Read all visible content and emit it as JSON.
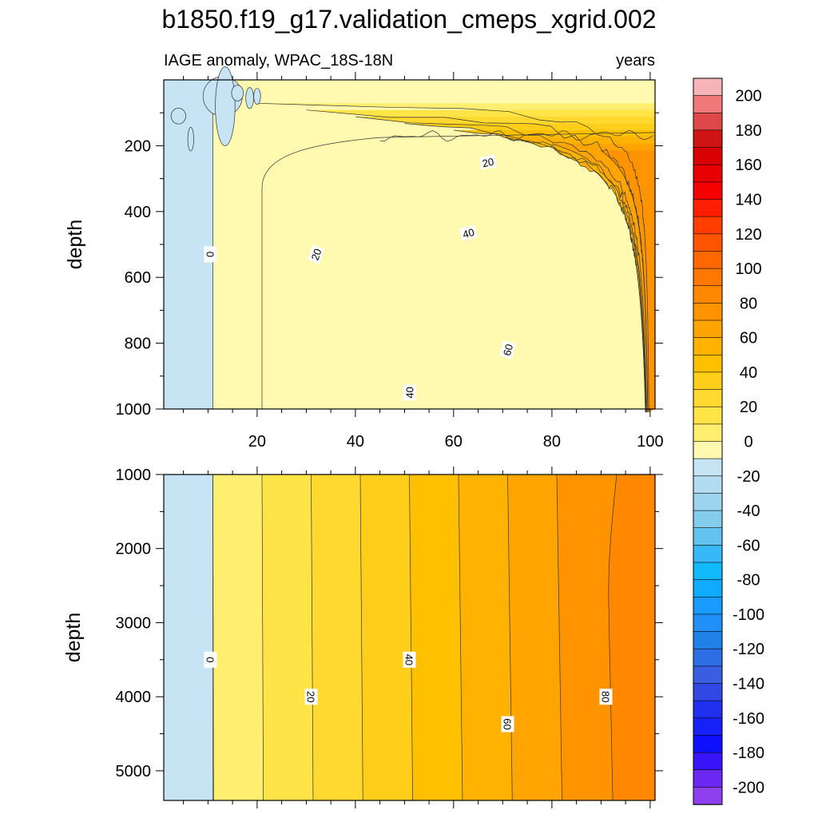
{
  "chart_data": {
    "type": "contour",
    "title": "b1850.f19_g17.validation_cmeps_xgrid.002",
    "left_subtitle": "IAGE anomaly, WPAC_18S-18N",
    "right_subtitle": "years",
    "units": "years",
    "x": {
      "range": [
        1,
        101
      ],
      "ticks": [
        20,
        40,
        60,
        80,
        100
      ],
      "tick_labels": [
        "20",
        "40",
        "60",
        "80",
        "100"
      ]
    },
    "panels": [
      {
        "name": "upper",
        "ylabel": "depth",
        "yrange": [
          0,
          1000
        ],
        "yticks": [
          200,
          400,
          600,
          800,
          1000
        ],
        "ytick_labels": [
          "200",
          "400",
          "600",
          "800",
          "1000"
        ],
        "contour_labels": [
          {
            "text": "0",
            "x": 10.5,
            "depth": 530,
            "rot": 90
          },
          {
            "text": "20",
            "x": 32,
            "depth": 530,
            "rot": -70
          },
          {
            "text": "40",
            "x": 51,
            "depth": 950,
            "rot": -90
          },
          {
            "text": "60",
            "x": 71,
            "depth": 820,
            "rot": -75
          },
          {
            "text": "20",
            "x": 67,
            "depth": 250,
            "rot": -12
          },
          {
            "text": "40",
            "x": 63,
            "depth": 465,
            "rot": -15
          }
        ]
      },
      {
        "name": "lower",
        "ylabel": "depth",
        "yrange": [
          1000,
          5400
        ],
        "yticks": [
          1000,
          2000,
          3000,
          4000,
          5000
        ],
        "ytick_labels": [
          "1000",
          "2000",
          "3000",
          "4000",
          "5000"
        ],
        "contour_labels": [
          {
            "text": "0",
            "x": 10.5,
            "depth": 3500,
            "rot": 90
          },
          {
            "text": "20",
            "x": 31,
            "depth": 4000,
            "rot": 90
          },
          {
            "text": "40",
            "x": 51,
            "depth": 3500,
            "rot": 90
          },
          {
            "text": "60",
            "x": 71,
            "depth": 4370,
            "rot": 90
          },
          {
            "text": "80",
            "x": 91,
            "depth": 4000,
            "rot": 90
          }
        ]
      }
    ],
    "colorbar": {
      "labels": [
        "200",
        "180",
        "160",
        "140",
        "120",
        "100",
        "80",
        "60",
        "40",
        "20",
        "0",
        "-20",
        "-40",
        "-60",
        "-80",
        "-100",
        "-120",
        "-140",
        "-160",
        "-180",
        "-200"
      ],
      "colors": [
        "#f7b4b8",
        "#ef7878",
        "#de4848",
        "#cf1414",
        "#d80000",
        "#e80000",
        "#f70000",
        "#ff1e00",
        "#ff3e00",
        "#ff5400",
        "#ff6800",
        "#ff7800",
        "#ff8800",
        "#ff9400",
        "#ffa400",
        "#ffb200",
        "#ffc000",
        "#ffce1a",
        "#ffd830",
        "#ffe448",
        "#ffee70",
        "#fffab0",
        "#c6e4f4",
        "#b4dcf0",
        "#9cd4ee",
        "#84ccec",
        "#64c2f0",
        "#38b8f8",
        "#12b8fc",
        "#10aaff",
        "#189cff",
        "#2090f6",
        "#2080e8",
        "#2e6ee4",
        "#3a5ee0",
        "#3248e4",
        "#2030ee",
        "#1820f8",
        "#0e10ff",
        "#3a14f8",
        "#6a28f2",
        "#8e40ee"
      ]
    },
    "colors": {
      "neg": "#c6e4f4",
      "bands": [
        "#fffab0",
        "#ffee70",
        "#ffe448",
        "#ffd830",
        "#ffce1a",
        "#ffc000",
        "#ffb200",
        "#ffa400",
        "#ff9400",
        "#ff8800"
      ]
    }
  }
}
